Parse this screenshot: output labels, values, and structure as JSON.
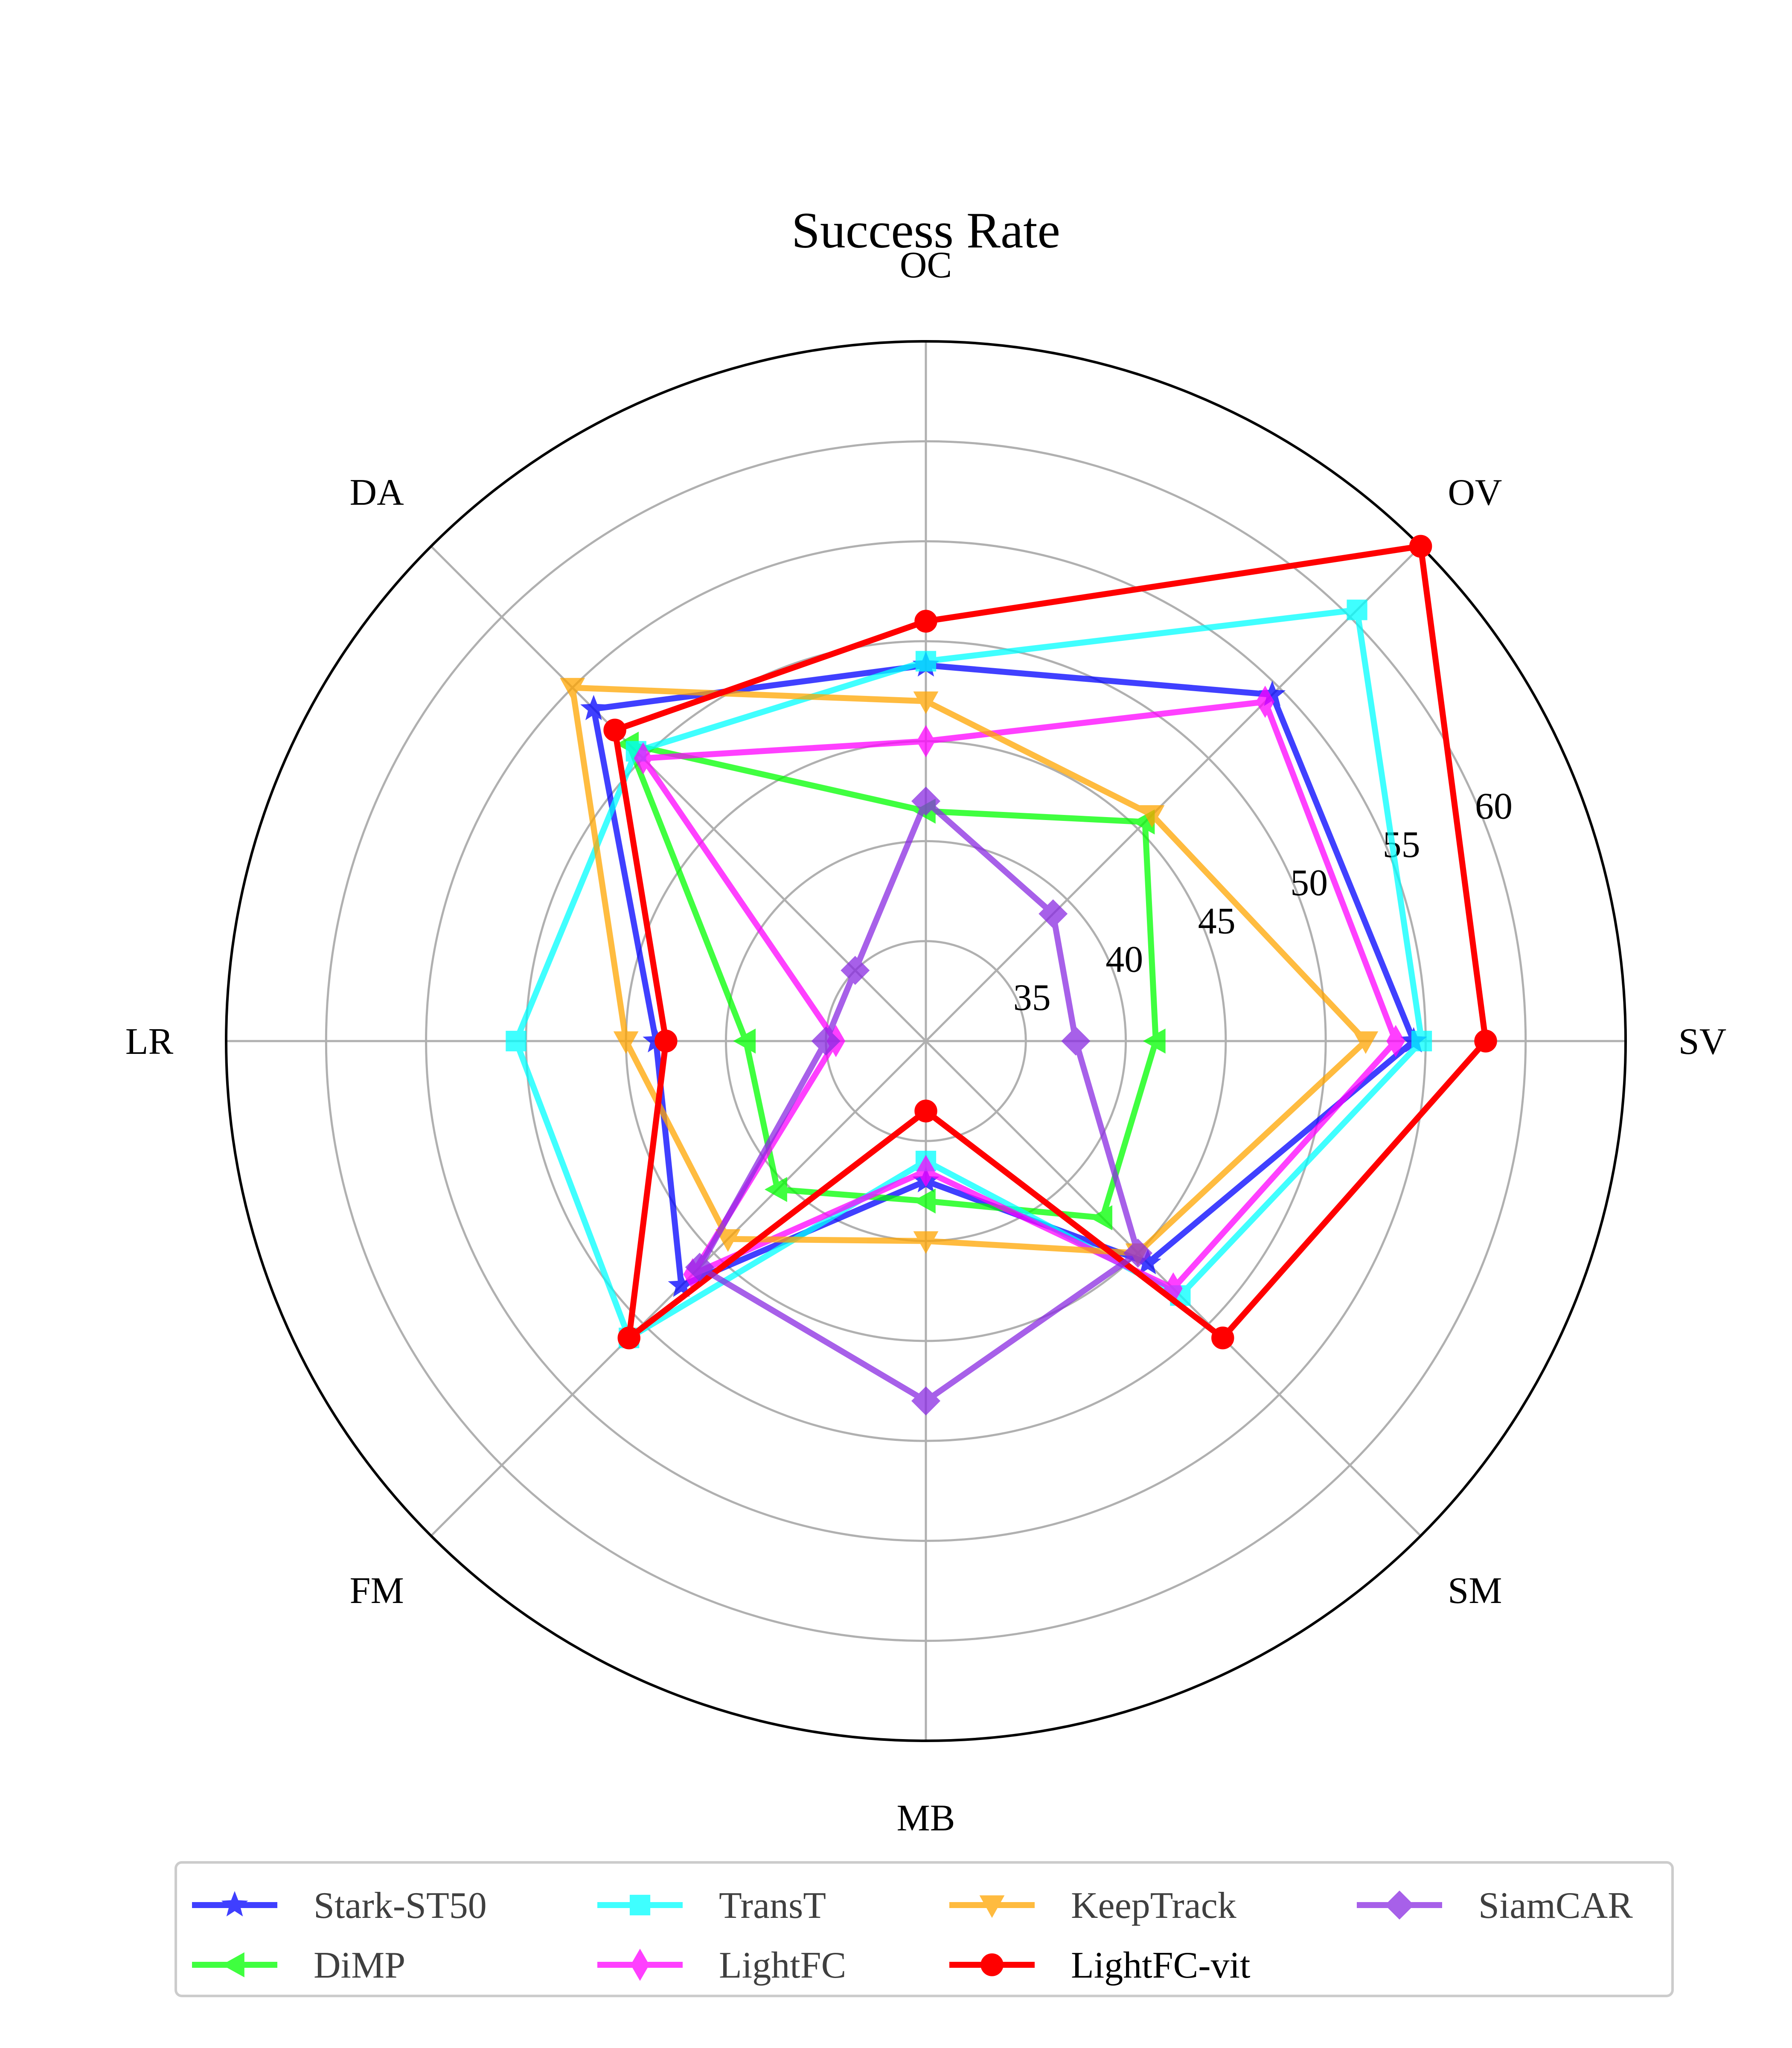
{
  "chart_data": {
    "type": "radar",
    "title": "Success Rate",
    "axes": [
      "OC",
      "OV",
      "SV",
      "SM",
      "MB",
      "FM",
      "LR",
      "DA"
    ],
    "rlim": [
      30,
      65
    ],
    "rticks": [
      35,
      40,
      45,
      50,
      55,
      60
    ],
    "grid": true,
    "legend_position": "bottom",
    "series": [
      {
        "name": "Stark-ST50",
        "color": "#0000ff",
        "marker": "star",
        "values": [
          48.8,
          54.5,
          54.4,
          45.7,
          37.0,
          47.3,
          43.5,
          53.5
        ]
      },
      {
        "name": "DiMP",
        "color": "#00ff00",
        "marker": "triangle-left",
        "values": [
          41.5,
          45.5,
          41.5,
          42.5,
          38.0,
          40.5,
          39.0,
          51.0
        ]
      },
      {
        "name": "TransT",
        "color": "#00ffff",
        "marker": "square",
        "values": [
          49.0,
          60.5,
          54.8,
          48.0,
          36.0,
          51.0,
          50.5,
          50.5
        ]
      },
      {
        "name": "LightFC",
        "color": "#ff00ff",
        "marker": "thin-diamond",
        "values": [
          45.0,
          54.0,
          53.5,
          47.5,
          36.5,
          46.5,
          34.5,
          50.0
        ]
      },
      {
        "name": "KeepTrack",
        "color": "#ffa500",
        "marker": "triangle-down",
        "values": [
          47.0,
          46.0,
          52.0,
          45.0,
          40.0,
          44.0,
          45.0,
          55.0
        ]
      },
      {
        "name": "LightFC-vit",
        "color": "#ff0000",
        "marker": "circle",
        "values": [
          51.0,
          65.0,
          58.0,
          51.0,
          33.5,
          51.0,
          43.0,
          52.0
        ]
      },
      {
        "name": "SiamCAR",
        "color": "#8a2be2",
        "marker": "diamond",
        "values": [
          42.0,
          39.0,
          37.5,
          45.0,
          48.0,
          46.0,
          35.0,
          35.0
        ]
      }
    ]
  },
  "legend": {
    "items": [
      "Stark-ST50",
      "TransT",
      "KeepTrack",
      "SiamCAR",
      "DiMP",
      "LightFC",
      "LightFC-vit"
    ]
  }
}
